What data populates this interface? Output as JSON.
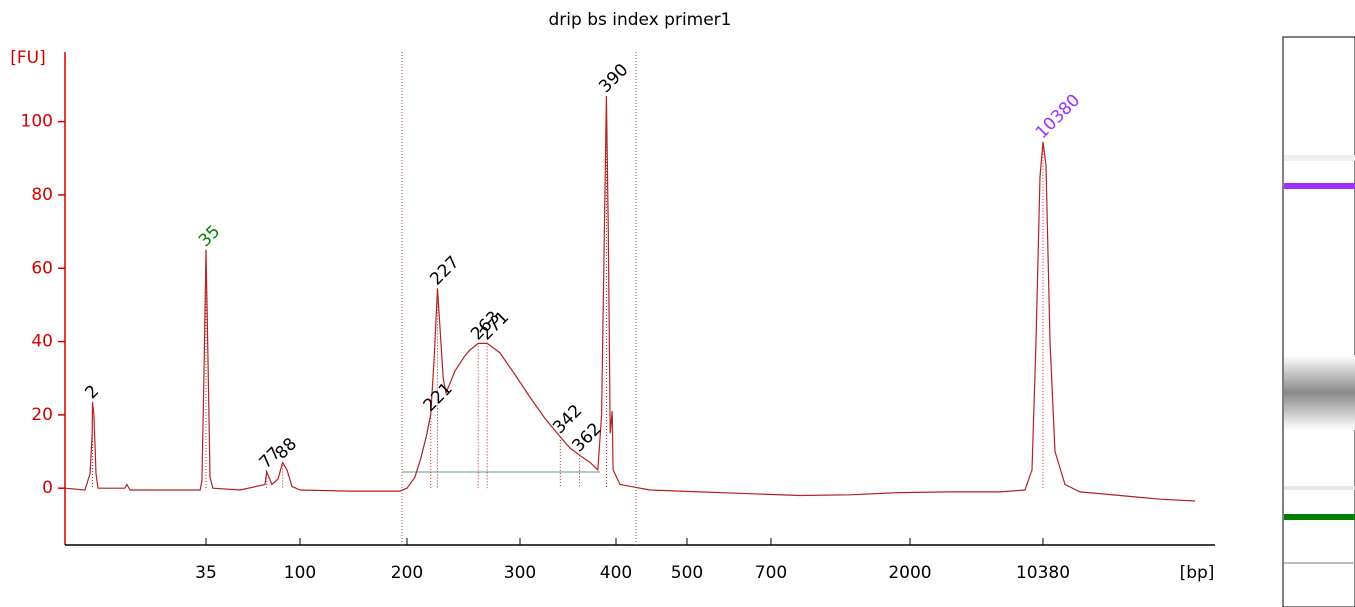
{
  "chart_data": {
    "type": "line",
    "title": "drip bs index primer1",
    "y_label": "[FU]",
    "x_label": "[bp]",
    "color": "#b22222",
    "ylim": [
      -15.5,
      119
    ],
    "yticks": [
      0,
      20,
      40,
      60,
      80,
      100
    ],
    "xlim": [
      -6,
      15000
    ],
    "xticks": [
      35,
      100,
      200,
      300,
      400,
      500,
      700,
      2000,
      10380
    ],
    "x": [
      -6,
      -0.2,
      1.3,
      1.9,
      2,
      2.4,
      3,
      3.6,
      11.4,
      12,
      12.9,
      21.6,
      33.3,
      33.8,
      34.4,
      35,
      36.4,
      37.8,
      39.8,
      58.5,
      75.8,
      77,
      80.6,
      84.8,
      88,
      91,
      94.5,
      100,
      146.7,
      193.5,
      200,
      207,
      212,
      217,
      221,
      224,
      227,
      232,
      234.5,
      242.5,
      251,
      255,
      263,
      271,
      282,
      295.6,
      310,
      326,
      342,
      352,
      362,
      373,
      381,
      385,
      390,
      392,
      394,
      396,
      397,
      405.6,
      448,
      531,
      650,
      971,
      1439,
      1906,
      4520,
      7671,
      9246,
      9687,
      9939,
      10191,
      10380,
      10471,
      10593,
      10745,
      11049,
      11504,
      12720,
      13936,
      15000
    ],
    "values": [
      0,
      -0.5,
      4,
      15,
      23.5,
      20,
      4,
      0,
      0,
      1,
      -0.5,
      -0.5,
      -0.5,
      2,
      30,
      65,
      35,
      3,
      0,
      -0.5,
      1,
      4.5,
      1,
      2.5,
      7,
      5,
      0.5,
      -0.5,
      -0.8,
      -0.8,
      0,
      3,
      8,
      14,
      20,
      35,
      54.5,
      30,
      26,
      32,
      36,
      37.5,
      39.5,
      39.5,
      37,
      31,
      25,
      19,
      14,
      11,
      9,
      7,
      5,
      20,
      107,
      70,
      15,
      21,
      5,
      1,
      -0.5,
      -1,
      -1.5,
      -2,
      -1.8,
      -1.2,
      -1,
      -1,
      -0.5,
      5,
      40,
      85,
      94.5,
      88,
      40,
      10,
      1,
      -1,
      -2,
      -3,
      -3.5
    ],
    "peaks": [
      {
        "size": 2,
        "height": 23.5,
        "color": "#000000"
      },
      {
        "size": 35,
        "height": 65,
        "color": "#008000"
      },
      {
        "size": 77,
        "height": 4.5,
        "color": "#000000"
      },
      {
        "size": 88,
        "height": 7,
        "color": "#000000"
      },
      {
        "size": 221,
        "height": 20,
        "color": "#000000"
      },
      {
        "size": 227,
        "height": 54.5,
        "color": "#000000"
      },
      {
        "size": 263,
        "height": 39.5,
        "color": "#000000"
      },
      {
        "size": 271,
        "height": 39.5,
        "color": "#000000"
      },
      {
        "size": 342,
        "height": 14,
        "color": "#000000"
      },
      {
        "size": 362,
        "height": 9,
        "color": "#000000"
      },
      {
        "size": 390,
        "height": 107,
        "color": "#000000"
      },
      {
        "size": 10380,
        "height": 94.5,
        "color": "#9b30ff"
      }
    ]
  }
}
